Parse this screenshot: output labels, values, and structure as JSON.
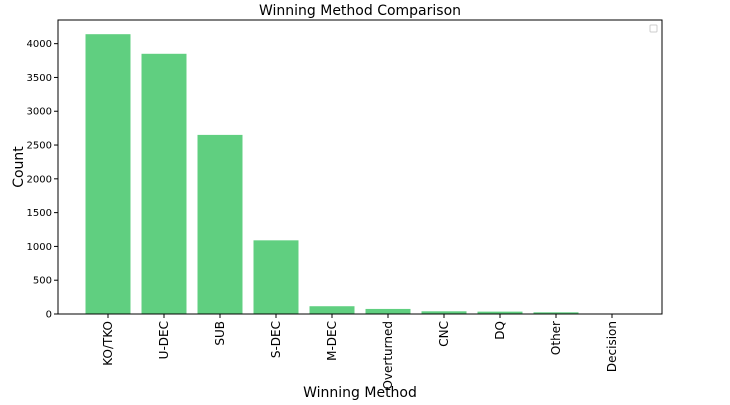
{
  "chart_data": {
    "type": "bar",
    "title": "Winning Method Comparison",
    "xlabel": "Winning Method",
    "ylabel": "Count",
    "categories": [
      "KO/TKO",
      "U-DEC",
      "SUB",
      "S-DEC",
      "M-DEC",
      "Overturned",
      "CNC",
      "DQ",
      "Other",
      "Decision"
    ],
    "values": [
      4140,
      3850,
      2650,
      1090,
      115,
      75,
      40,
      35,
      25,
      5
    ],
    "ylim": [
      0,
      4350
    ],
    "yticks": [
      0,
      500,
      1000,
      1500,
      2000,
      2500,
      3000,
      3500,
      4000
    ],
    "bar_color": "#60cf80",
    "grid": false,
    "legend": {
      "placement": "top-right",
      "entries": []
    }
  }
}
